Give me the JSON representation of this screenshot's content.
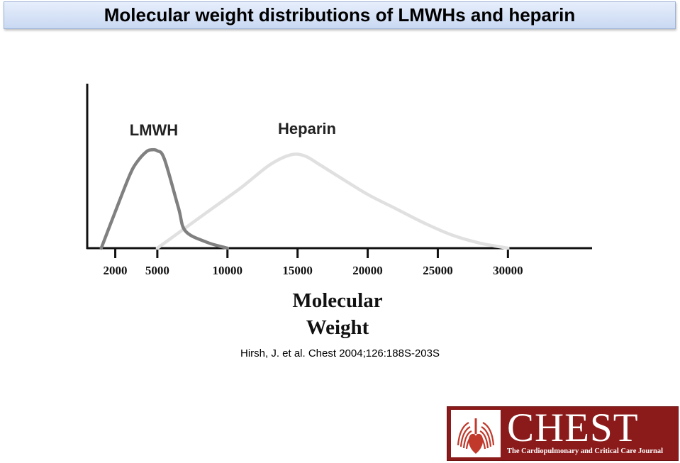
{
  "slide": {
    "title": "Molecular weight distributions of LMWHs and heparin",
    "citation": "Hirsh, J. et al. Chest 2004;126:188S-203S"
  },
  "logo": {
    "name": "CHEST",
    "tagline": "The Cardiopulmonary and Critical Care Journal"
  },
  "chart_data": {
    "type": "line",
    "title": "",
    "xlabel": "Molecular Weight",
    "ylabel": "",
    "x_ticks": [
      2000,
      5000,
      10000,
      15000,
      20000,
      25000,
      30000
    ],
    "x_tick_labels": [
      "2000",
      "5000",
      "10000",
      "15000",
      "20000",
      "25000",
      "30000"
    ],
    "xlim": [
      0,
      36000
    ],
    "ylim": [
      0,
      1
    ],
    "grid": false,
    "legend": "none",
    "series": [
      {
        "name": "LMWH",
        "color": "#808080",
        "x": [
          1000,
          2000,
          3000,
          3500,
          4200,
          4600,
          5000,
          5500,
          6500,
          7000,
          8500,
          10000
        ],
        "y": [
          0.0,
          0.36,
          0.71,
          0.84,
          0.95,
          0.97,
          0.96,
          0.88,
          0.4,
          0.17,
          0.06,
          0.0
        ]
      },
      {
        "name": "Heparin",
        "color": "#e0e0e0",
        "x": [
          5000,
          7000,
          9000,
          11000,
          13000,
          14500,
          15500,
          16500,
          18000,
          20000,
          22000,
          24000,
          26000,
          28000,
          30000
        ],
        "y": [
          0.0,
          0.2,
          0.4,
          0.6,
          0.82,
          0.92,
          0.91,
          0.83,
          0.7,
          0.53,
          0.39,
          0.25,
          0.13,
          0.05,
          0.0
        ]
      }
    ]
  }
}
